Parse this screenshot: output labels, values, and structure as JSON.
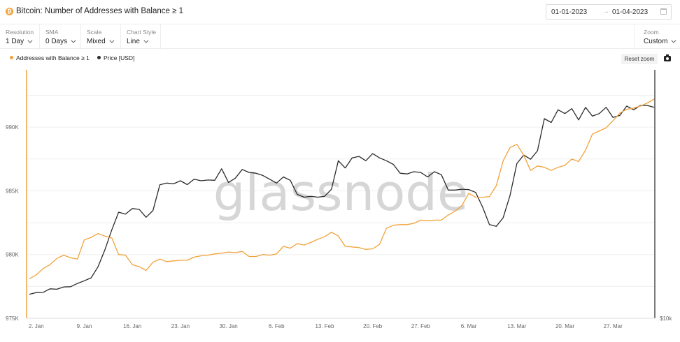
{
  "header": {
    "title": "Bitcoin: Number of Addresses with Balance ≥ 1",
    "date_start": "01-01-2023",
    "date_arrow": "→",
    "date_end": "01-04-2023"
  },
  "toolbar": {
    "resolution": {
      "label": "Resolution",
      "value": "1 Day"
    },
    "sma": {
      "label": "SMA",
      "value": "0 Days"
    },
    "scale": {
      "label": "Scale",
      "value": "Mixed"
    },
    "chart_style": {
      "label": "Chart Style",
      "value": "Line"
    },
    "zoom": {
      "label": "Zoom",
      "value": "Custom"
    }
  },
  "reset_zoom_label": "Reset zoom",
  "watermark": "glassnode",
  "colors": {
    "addresses": "#f2a23a",
    "price": "#2b2b2b",
    "grid": "#efefef"
  },
  "chart_data": {
    "type": "line",
    "x_start": "2023-01-01",
    "x_ticks": [
      "2. Jan",
      "9. Jan",
      "16. Jan",
      "23. Jan",
      "30. Jan",
      "6. Feb",
      "13. Feb",
      "20. Feb",
      "27. Feb",
      "6. Mar",
      "13. Mar",
      "20. Mar",
      "27. Mar"
    ],
    "y_left": {
      "ticks": [
        "975K",
        "980K",
        "985K",
        "990K"
      ],
      "tick_values": [
        975000,
        980000,
        985000,
        990000
      ],
      "range": [
        975000,
        994500
      ]
    },
    "y_right": {
      "ticks": [
        "$10k"
      ],
      "scale": "log"
    },
    "grid": true,
    "legend_position": "top-left",
    "series": [
      {
        "name": "Addresses with Balance ≥ 1",
        "axis": "left",
        "values": [
          978100,
          978400,
          978900,
          979200,
          979700,
          979950,
          979750,
          979650,
          981150,
          981350,
          981650,
          981450,
          981300,
          980000,
          979950,
          979200,
          979050,
          978750,
          979400,
          979650,
          979450,
          979500,
          979550,
          979550,
          979800,
          979900,
          979950,
          980050,
          980100,
          980200,
          980150,
          980250,
          979850,
          979850,
          980000,
          979950,
          980050,
          980650,
          980500,
          980850,
          980750,
          980950,
          981200,
          981400,
          981750,
          981450,
          980650,
          980600,
          980550,
          980400,
          980450,
          980800,
          982050,
          982300,
          982350,
          982350,
          982450,
          982700,
          982650,
          982700,
          982700,
          983100,
          983400,
          983850,
          984800,
          984500,
          984500,
          984550,
          985400,
          987350,
          988400,
          988650,
          987800,
          986600,
          986950,
          986850,
          986600,
          986850,
          987000,
          987500,
          987300,
          988200,
          989450,
          989700,
          989950,
          990500,
          991100,
          991400,
          991500,
          991650,
          991900,
          992200
        ]
      },
      {
        "name": "Price [USD]",
        "axis": "right",
        "values": [
          16600,
          16680,
          16690,
          16860,
          16840,
          16950,
          16960,
          17120,
          17250,
          17400,
          17950,
          18850,
          19950,
          20980,
          20870,
          21200,
          21150,
          20680,
          21080,
          22690,
          22800,
          22750,
          22950,
          22700,
          23050,
          22950,
          23000,
          22980,
          23750,
          22840,
          23120,
          23700,
          23500,
          23450,
          23300,
          23050,
          22800,
          23200,
          22980,
          22080,
          21900,
          21950,
          21900,
          21950,
          22400,
          24300,
          23800,
          24500,
          24600,
          24300,
          24800,
          24500,
          24300,
          24050,
          23450,
          23400,
          23550,
          23500,
          23200,
          23550,
          23350,
          22350,
          22350,
          22400,
          22380,
          22200,
          21300,
          20250,
          20150,
          20650,
          22000,
          24100,
          24700,
          24400,
          25000,
          27400,
          27100,
          28100,
          27800,
          28200,
          27300,
          28300,
          27600,
          27800,
          28300,
          27500,
          27650,
          28400,
          28100,
          28450,
          28450,
          28300
        ]
      }
    ]
  }
}
